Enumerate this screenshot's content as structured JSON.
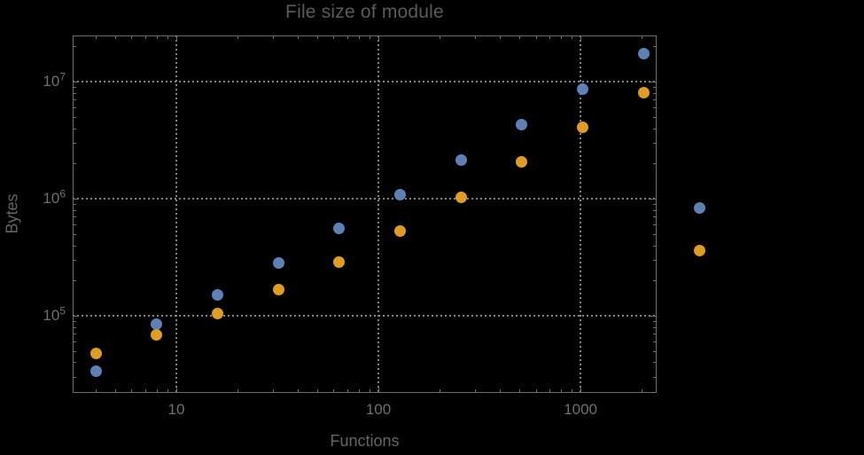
{
  "title": "File size of module",
  "colors": {
    "background": "#000000",
    "frame": "#6e6e6e",
    "grid": "#848484",
    "title_text": "#5a5a5a",
    "axis_text": "#646464",
    "tick_text": "#6f6f6f",
    "series_blue": "#5e81b5",
    "series_orange": "#e19c24"
  },
  "chart_data": {
    "type": "scatter",
    "title": "File size of module",
    "xlabel": "Functions",
    "ylabel": "Bytes",
    "xscale": "log",
    "yscale": "log",
    "xlim": [
      3.07,
      2380
    ],
    "ylim": [
      21900,
      24800000
    ],
    "grid": "dotted lines at major decades",
    "legend": "none",
    "x_major_ticks": [
      10,
      100,
      1000
    ],
    "x_tick_labels": [
      "10",
      "100",
      "1000"
    ],
    "y_major_ticks": [
      100000,
      1000000,
      10000000
    ],
    "y_tick_labels": [
      "10^5",
      "10^6",
      "10^7"
    ],
    "marker_diameter": 13,
    "series": [
      {
        "name": "blue",
        "color": "#5e81b5",
        "points": [
          [
            4,
            33300
          ],
          [
            8,
            84000
          ],
          [
            16,
            150000
          ],
          [
            32,
            283000
          ],
          [
            64,
            553000
          ],
          [
            128,
            1090000
          ],
          [
            256,
            2150000
          ],
          [
            512,
            4300000
          ],
          [
            1024,
            8600000
          ],
          [
            2048,
            17200000
          ],
          [
            3870,
            830000
          ]
        ]
      },
      {
        "name": "orange",
        "color": "#e19c24",
        "points": [
          [
            4,
            48000
          ],
          [
            8,
            68500
          ],
          [
            16,
            104000
          ],
          [
            32,
            166000
          ],
          [
            64,
            285000
          ],
          [
            128,
            527000
          ],
          [
            256,
            1030000
          ],
          [
            512,
            2050000
          ],
          [
            1024,
            4110000
          ],
          [
            2048,
            8100000
          ],
          [
            3870,
            358000
          ]
        ]
      }
    ]
  }
}
